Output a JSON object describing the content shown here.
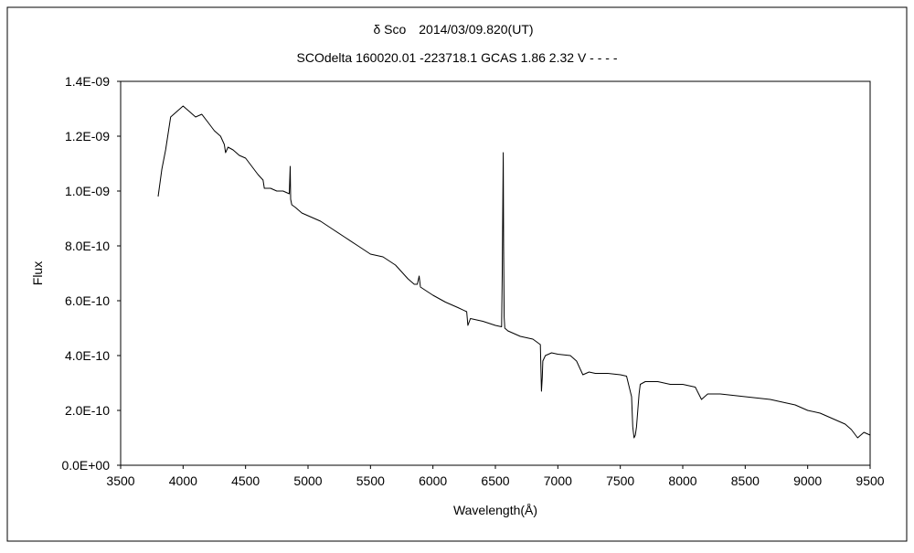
{
  "chart_data": {
    "type": "line",
    "title": "δ Sco　2014/03/09.820(UT)",
    "subtitle": "SCOdelta 160020.01 -223718.1 GCAS 1.86 2.32 V - - - -",
    "xlabel": "Wavelength(Å)",
    "ylabel": "Flux",
    "xlim": [
      3500,
      9500
    ],
    "ylim": [
      0,
      1.4e-09
    ],
    "x_ticks": [
      3500,
      4000,
      4500,
      5000,
      5500,
      6000,
      6500,
      7000,
      7500,
      8000,
      8500,
      9000,
      9500
    ],
    "y_ticks": [
      0,
      2e-10,
      4e-10,
      6e-10,
      8e-10,
      1e-09,
      1.2e-09,
      1.4e-09
    ],
    "x_tick_labels": [
      "3500",
      "4000",
      "4500",
      "5000",
      "5500",
      "6000",
      "6500",
      "7000",
      "7500",
      "8000",
      "8500",
      "9000",
      "9500"
    ],
    "y_tick_labels": [
      "0.0E+00",
      "2.0E-10",
      "4.0E-10",
      "6.0E-10",
      "8.0E-10",
      "1.0E-09",
      "1.2E-09",
      "1.4E-09"
    ],
    "grid": false,
    "legend": "none",
    "series": [
      {
        "color": "#000000",
        "x": [
          3800,
          3830,
          3860,
          3900,
          3950,
          4000,
          4050,
          4100,
          4150,
          4200,
          4250,
          4300,
          4330,
          4340,
          4360,
          4400,
          4450,
          4500,
          4550,
          4600,
          4640,
          4650,
          4700,
          4750,
          4800,
          4850,
          4857,
          4861,
          4865,
          4870,
          4900,
          4950,
          5000,
          5100,
          5200,
          5300,
          5400,
          5500,
          5600,
          5700,
          5800,
          5850,
          5875,
          5890,
          5900,
          5950,
          6000,
          6100,
          6200,
          6270,
          6280,
          6300,
          6400,
          6500,
          6550,
          6555,
          6560,
          6563,
          6566,
          6570,
          6575,
          6600,
          6700,
          6800,
          6860,
          6869,
          6875,
          6880,
          6900,
          6950,
          7000,
          7100,
          7150,
          7200,
          7250,
          7300,
          7400,
          7500,
          7550,
          7590,
          7600,
          7610,
          7620,
          7630,
          7640,
          7650,
          7660,
          7700,
          7800,
          7900,
          8000,
          8100,
          8150,
          8200,
          8300,
          8400,
          8500,
          8600,
          8700,
          8800,
          8900,
          9000,
          9100,
          9200,
          9300,
          9350,
          9400,
          9450,
          9500
        ],
        "y": [
          9.8e-10,
          1.08e-09,
          1.15e-09,
          1.27e-09,
          1.29e-09,
          1.31e-09,
          1.29e-09,
          1.27e-09,
          1.28e-09,
          1.25e-09,
          1.22e-09,
          1.2e-09,
          1.17e-09,
          1.14e-09,
          1.16e-09,
          1.15e-09,
          1.13e-09,
          1.12e-09,
          1.09e-09,
          1.06e-09,
          1.04e-09,
          1.01e-09,
          1.01e-09,
          1e-09,
          1e-09,
          9.9e-10,
          1.09e-09,
          9.7e-10,
          9.6e-10,
          9.5e-10,
          9.4e-10,
          9.2e-10,
          9.1e-10,
          8.9e-10,
          8.6e-10,
          8.3e-10,
          8e-10,
          7.7e-10,
          7.6e-10,
          7.3e-10,
          6.8e-10,
          6.6e-10,
          6.6e-10,
          6.9e-10,
          6.5e-10,
          6.35e-10,
          6.2e-10,
          5.95e-10,
          5.75e-10,
          5.6e-10,
          5.1e-10,
          5.35e-10,
          5.25e-10,
          5.1e-10,
          5.05e-10,
          7e-10,
          9.8e-10,
          1.14e-09,
          8e-10,
          5.4e-10,
          5e-10,
          4.9e-10,
          4.7e-10,
          4.6e-10,
          4.4e-10,
          2.7e-10,
          3.2e-10,
          3.8e-10,
          4e-10,
          4.1e-10,
          4.05e-10,
          4e-10,
          3.8e-10,
          3.3e-10,
          3.4e-10,
          3.35e-10,
          3.35e-10,
          3.3e-10,
          3.25e-10,
          2.5e-10,
          1.4e-10,
          1e-10,
          1.1e-10,
          1.4e-10,
          2e-10,
          2.6e-10,
          2.95e-10,
          3.05e-10,
          3.05e-10,
          2.95e-10,
          2.95e-10,
          2.85e-10,
          2.4e-10,
          2.6e-10,
          2.6e-10,
          2.55e-10,
          2.5e-10,
          2.45e-10,
          2.4e-10,
          2.3e-10,
          2.2e-10,
          2e-10,
          1.9e-10,
          1.7e-10,
          1.5e-10,
          1.3e-10,
          1e-10,
          1.2e-10,
          1.1e-10
        ]
      }
    ]
  }
}
